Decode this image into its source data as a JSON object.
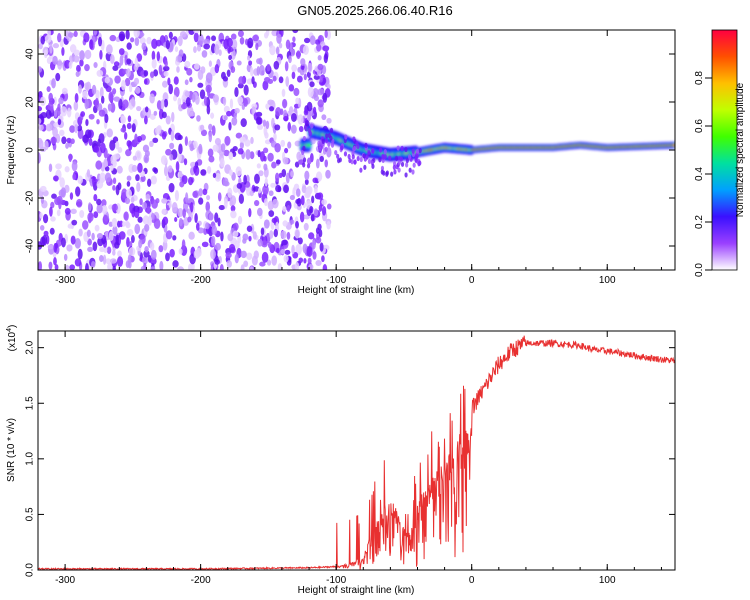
{
  "title": "GN05.2025.266.06.40.R16",
  "colors": {
    "snr_line": "#e83030",
    "rainbow": [
      "#ffffff",
      "#9a40ff",
      "#3a10ff",
      "#00a0ff",
      "#00e0a0",
      "#40ff00",
      "#c0ff00",
      "#ffc000",
      "#ff5000",
      "#ff0040"
    ]
  },
  "chart_data": [
    {
      "type": "heatmap",
      "name": "spectrogram",
      "xlabel": "Height of straight line (km)",
      "ylabel": "Frequency (Hz)",
      "xlim": [
        -320,
        150
      ],
      "ylim": [
        -50,
        50
      ],
      "xticks": [
        -300,
        -200,
        -100,
        0,
        100
      ],
      "xtick_labels": [
        "-300",
        "-200",
        "-100",
        "0",
        "100"
      ],
      "yticks": [
        -40,
        -20,
        0,
        20,
        40
      ],
      "ytick_labels": [
        "-40",
        "-20",
        "0",
        "20",
        "40"
      ],
      "ridge": {
        "x": [
          -120,
          -100,
          -80,
          -60,
          -40,
          -20,
          0,
          20,
          60,
          80,
          100,
          150
        ],
        "freq": [
          8,
          5,
          0,
          -2,
          -1,
          1,
          0,
          1,
          1,
          2,
          1,
          2
        ]
      },
      "colorbar": {
        "label": "Normalized spectral amplitude",
        "range": [
          0,
          1
        ],
        "ticks": [
          0.0,
          0.2,
          0.4,
          0.6,
          0.8
        ],
        "tick_labels": [
          "0.0",
          "0.2",
          "0.4",
          "0.6",
          "0.8"
        ]
      }
    },
    {
      "type": "line",
      "name": "snr",
      "xlabel": "Height of straight line (km)",
      "ylabel": "SNR (10 * v/v)",
      "scale_label": "(x10",
      "scale_exp": "4",
      "scale_close": ")",
      "xlim": [
        -320,
        150
      ],
      "ylim": [
        0,
        2.15
      ],
      "xticks": [
        -300,
        -200,
        -100,
        0,
        100
      ],
      "xtick_labels": [
        "-300",
        "-200",
        "-100",
        "0",
        "100"
      ],
      "yticks": [
        0.0,
        0.5,
        1.0,
        1.5,
        2.0
      ],
      "ytick_labels": [
        "0.0",
        "0.5",
        "1.0",
        "1.5",
        "2.0"
      ],
      "series": [
        {
          "name": "SNR",
          "x": [
            -320,
            -200,
            -120,
            -100,
            -90,
            -80,
            -75,
            -70,
            -65,
            -60,
            -55,
            -50,
            -45,
            -40,
            -35,
            -30,
            -25,
            -20,
            -15,
            -10,
            -5,
            0,
            10,
            20,
            30,
            40,
            60,
            80,
            90,
            100,
            110,
            130,
            150
          ],
          "y": [
            0.01,
            0.01,
            0.02,
            0.03,
            0.06,
            0.12,
            0.3,
            0.45,
            0.6,
            0.65,
            0.55,
            0.4,
            0.35,
            0.6,
            0.75,
            0.85,
            0.9,
            1.0,
            1.1,
            1.2,
            1.3,
            1.45,
            1.65,
            1.85,
            1.98,
            2.04,
            2.04,
            2.02,
            1.98,
            1.97,
            1.95,
            1.91,
            1.88
          ]
        }
      ]
    }
  ]
}
